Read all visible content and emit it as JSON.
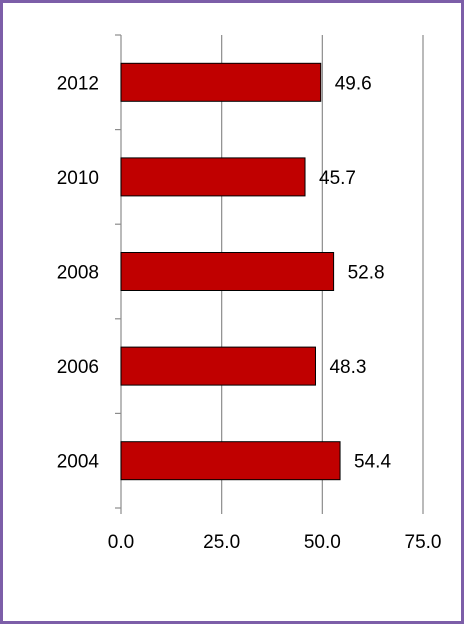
{
  "chart_data": {
    "type": "bar",
    "orientation": "horizontal",
    "categories": [
      "2012",
      "2010",
      "2008",
      "2006",
      "2004"
    ],
    "values": [
      49.6,
      45.7,
      52.8,
      48.3,
      54.4
    ],
    "value_labels": [
      "49.6",
      "45.7",
      "52.8",
      "48.3",
      "54.4"
    ],
    "xlim": [
      0,
      75
    ],
    "x_ticks": [
      0,
      25,
      50,
      75
    ],
    "x_tick_labels": [
      "0.0",
      "25.0",
      "50.0",
      "75.0"
    ],
    "grid": "vertical",
    "legend": "none",
    "bar_color": "#c00000",
    "border_color": "#7c5ea8"
  }
}
